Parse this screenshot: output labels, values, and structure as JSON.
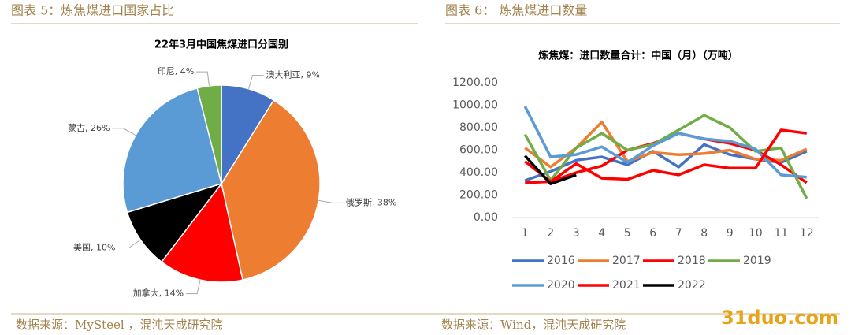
{
  "header": {
    "left": "图表 5：炼焦煤进口国家占比",
    "right": "图表 6：  炼焦煤进口数量"
  },
  "footer": {
    "left": "数据来源：MySteel ，混沌天成研究院",
    "right": "数据来源：Wind，混沌天成研究院"
  },
  "watermark": "31duo.com",
  "chart_data": [
    {
      "type": "pie",
      "title": "22年3月中国焦煤进口分国别",
      "values": [
        9,
        38,
        14,
        10,
        26,
        4
      ],
      "value_labels": [
        "澳大利亚, 9%",
        "俄罗斯, 38%",
        "加拿大, 14%",
        "美国, 10%",
        "蒙古, 26%",
        "印尼, 4%"
      ],
      "colors": [
        "#4472c4",
        "#ed7d31",
        "#ff0000",
        "#000000",
        "#5b9bd5",
        "#70ad47"
      ]
    },
    {
      "type": "line",
      "title": "炼焦煤：进口数量合计：中国（月）（万吨）",
      "categories": [
        "1",
        "2",
        "3",
        "4",
        "5",
        "6",
        "7",
        "8",
        "9",
        "10",
        "11",
        "12"
      ],
      "ylim": [
        0,
        1200
      ],
      "yticks": [
        {
          "value": 0,
          "label": "0.00"
        },
        {
          "value": 200,
          "label": "200.00"
        },
        {
          "value": 400,
          "label": "400.00"
        },
        {
          "value": 600,
          "label": "600.00"
        },
        {
          "value": 800,
          "label": "800.00"
        },
        {
          "value": 1000,
          "label": "1000.00"
        },
        {
          "value": 1200,
          "label": "1200.00"
        }
      ],
      "grid": false,
      "legend": "bottom",
      "series": [
        {
          "name": "2016",
          "color": "#4472c4",
          "values": [
            330,
            410,
            510,
            540,
            470,
            590,
            450,
            650,
            560,
            520,
            490,
            590
          ]
        },
        {
          "name": "2017",
          "color": "#ed7d31",
          "values": [
            620,
            450,
            620,
            850,
            500,
            580,
            560,
            570,
            600,
            520,
            510,
            610
          ]
        },
        {
          "name": "2018",
          "color": "#ff0000",
          "values": [
            310,
            320,
            400,
            460,
            600,
            660,
            750,
            700,
            660,
            600,
            470,
            310
          ]
        },
        {
          "name": "2019",
          "color": "#70ad47",
          "values": [
            740,
            330,
            620,
            750,
            600,
            650,
            780,
            910,
            800,
            590,
            620,
            170
          ]
        },
        {
          "name": "2020",
          "color": "#5b9bd5",
          "values": [
            990,
            540,
            560,
            630,
            490,
            640,
            750,
            700,
            680,
            610,
            380,
            360
          ]
        },
        {
          "name": "2021",
          "color": "#ff0000",
          "values": [
            500,
            320,
            480,
            350,
            340,
            420,
            380,
            470,
            440,
            440,
            780,
            750
          ]
        },
        {
          "name": "2022",
          "color": "#000000",
          "values": [
            550,
            300,
            380,
            null,
            null,
            null,
            null,
            null,
            null,
            null,
            null,
            null
          ]
        }
      ]
    }
  ]
}
